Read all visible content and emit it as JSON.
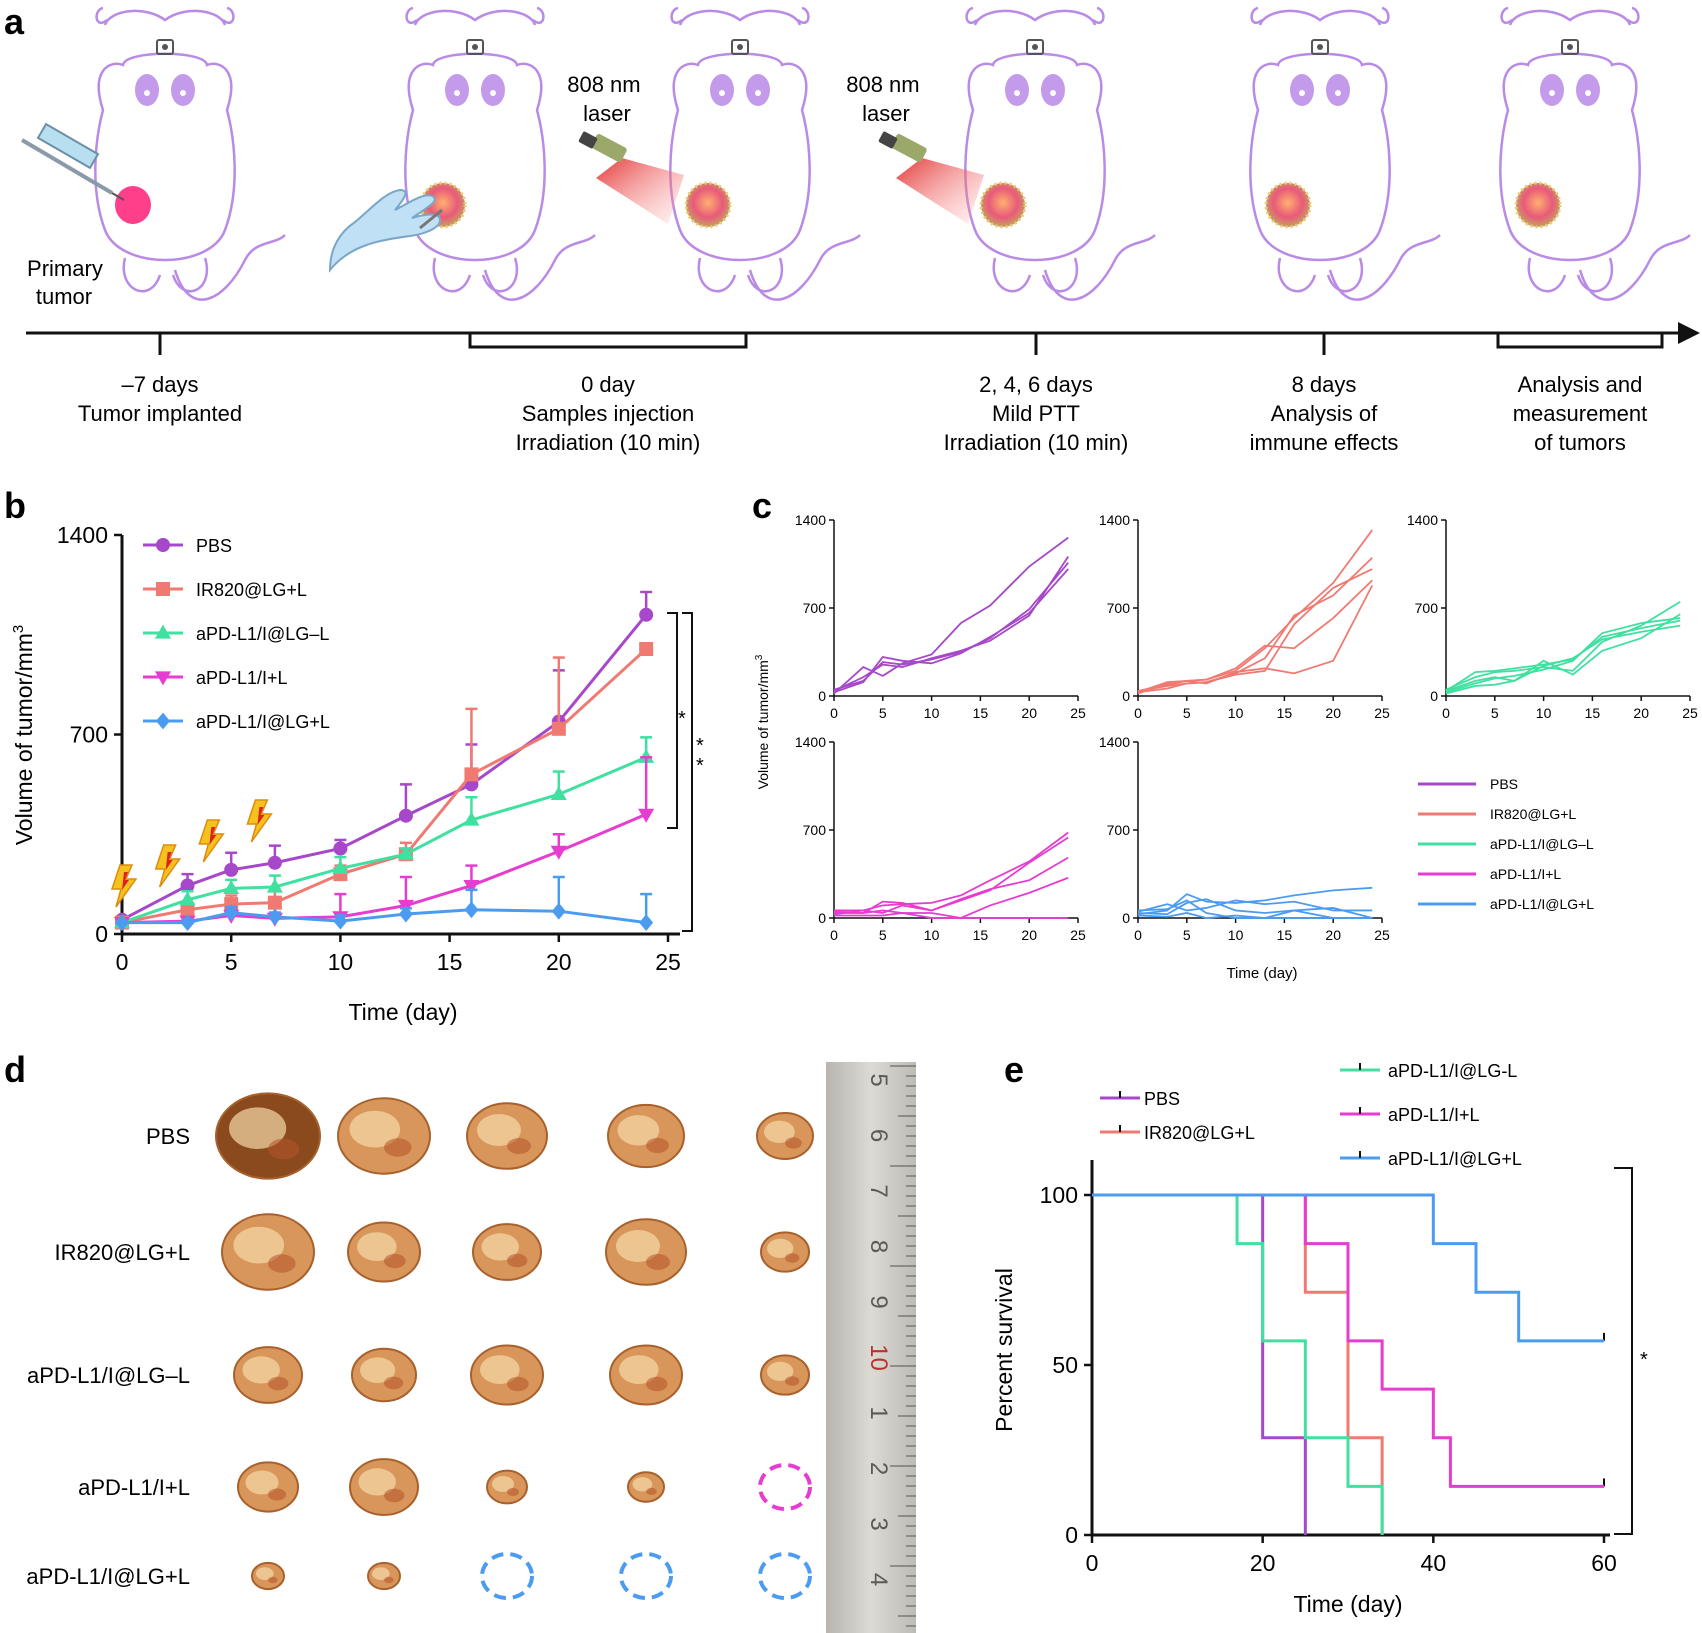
{
  "colors": {
    "pbs": "#a648c9",
    "ir820": "#f07a72",
    "lg_minus": "#3fe0a0",
    "free_l": "#e63ccf",
    "lg_plus": "#4b9cf0",
    "mouse": "#b98ae6",
    "tumor": "#ff3f8a",
    "laser": "#e02020",
    "bolt": "#f3c21c"
  },
  "panel_a": {
    "letter": "a",
    "injection_label": [
      "Primary",
      "tumor"
    ],
    "laser_label_1": [
      "808 nm",
      "laser"
    ],
    "laser_label_2": [
      "808 nm",
      "laser"
    ],
    "timeline": [
      {
        "lines": [
          "–7 days",
          "Tumor implanted"
        ]
      },
      {
        "lines": [
          "0 day",
          "Samples injection",
          "Irradiation (10 min)"
        ]
      },
      {
        "lines": [
          "2, 4, 6 days",
          "Mild PTT",
          "Irradiation (10 min)"
        ]
      },
      {
        "lines": [
          "8 days",
          "Analysis of",
          "immune effects"
        ]
      },
      {
        "lines": [
          "Analysis and",
          "measurement",
          "of tumors"
        ]
      }
    ]
  },
  "panel_b": {
    "letter": "b",
    "sig_1": "*",
    "sig_2": "*\n*",
    "chart_data": {
      "type": "line",
      "title": "",
      "xlabel": "Time (day)",
      "ylabel": "Volume of tumor/mm3",
      "xlim": [
        0,
        25
      ],
      "ylim": [
        0,
        1400
      ],
      "xticks": [
        0,
        5,
        10,
        15,
        20,
        25
      ],
      "yticks": [
        0,
        700,
        1400
      ],
      "laser_days": [
        0,
        2,
        4,
        6.2
      ],
      "series": [
        {
          "name": "PBS",
          "key": "pbs",
          "marker": "circle",
          "x": [
            0,
            3,
            5,
            7,
            10,
            13,
            16,
            20,
            24
          ],
          "y": [
            50,
            170,
            225,
            250,
            300,
            415,
            525,
            745,
            1120
          ],
          "err": [
            0,
            40,
            60,
            60,
            30,
            110,
            140,
            180,
            80
          ]
        },
        {
          "name": "IR820@LG+L",
          "key": "ir820",
          "marker": "square",
          "x": [
            0,
            3,
            5,
            7,
            10,
            13,
            16,
            20,
            24
          ],
          "y": [
            40,
            85,
            105,
            110,
            210,
            280,
            560,
            720,
            1000
          ],
          "err": [
            0,
            20,
            30,
            40,
            30,
            40,
            230,
            250,
            0
          ]
        },
        {
          "name": "aPD-L1/I@LG–L",
          "key": "lg_minus",
          "marker": "triangle-up",
          "x": [
            0,
            3,
            5,
            7,
            10,
            13,
            16,
            20,
            24
          ],
          "y": [
            40,
            120,
            160,
            165,
            230,
            280,
            400,
            490,
            620
          ],
          "err": [
            0,
            30,
            30,
            40,
            40,
            20,
            80,
            80,
            70
          ]
        },
        {
          "name": "aPD-L1/I+L",
          "key": "free_l",
          "marker": "triangle-down",
          "x": [
            0,
            3,
            5,
            7,
            10,
            13,
            16,
            20,
            24
          ],
          "y": [
            40,
            45,
            65,
            55,
            60,
            100,
            170,
            290,
            420
          ],
          "err": [
            0,
            10,
            20,
            20,
            80,
            100,
            70,
            60,
            200
          ]
        },
        {
          "name": "aPD-L1/I@LG+L",
          "key": "lg_plus",
          "marker": "diamond",
          "x": [
            0,
            3,
            5,
            7,
            10,
            13,
            16,
            20,
            24
          ],
          "y": [
            40,
            40,
            75,
            60,
            45,
            70,
            85,
            80,
            40
          ],
          "err": [
            0,
            10,
            20,
            15,
            20,
            20,
            70,
            120,
            100
          ]
        }
      ]
    }
  },
  "panel_c": {
    "letter": "c",
    "ylabel": "Volume of tumor/mm3",
    "xlabel": "Time (day)",
    "chart_data": {
      "type": "line",
      "xlim": [
        0,
        25
      ],
      "ylim": [
        0,
        1400
      ],
      "xticks": [
        0,
        5,
        10,
        15,
        20,
        25
      ],
      "yticks": [
        0,
        700,
        1400
      ],
      "x": [
        0,
        3,
        5,
        7,
        10,
        13,
        16,
        20,
        24
      ],
      "panels": [
        {
          "group": "PBS",
          "key": "pbs",
          "lines": [
            [
              20,
              230,
              160,
              260,
              330,
              580,
              720,
              1030,
              1260
            ],
            [
              40,
              150,
              250,
              230,
              300,
              360,
              440,
              640,
              1110
            ],
            [
              50,
              120,
              270,
              250,
              290,
              350,
              460,
              690,
              1060
            ],
            [
              30,
              110,
              310,
              280,
              260,
              340,
              470,
              660,
              1010
            ]
          ]
        },
        {
          "group": "IR820@LG+L",
          "key": "ir820",
          "lines": [
            [
              30,
              110,
              120,
              130,
              200,
              380,
              620,
              900,
              1320
            ],
            [
              40,
              80,
              100,
              110,
              180,
              300,
              640,
              800,
              1100
            ],
            [
              30,
              60,
              100,
              110,
              170,
              200,
              570,
              860,
              1010
            ],
            [
              40,
              90,
              120,
              130,
              220,
              400,
              380,
              620,
              920
            ],
            [
              20,
              100,
              120,
              100,
              190,
              220,
              180,
              280,
              880
            ]
          ]
        },
        {
          "group": "aPD-L1/I@LG–L",
          "key": "lg_minus",
          "lines": [
            [
              50,
              150,
              190,
              200,
              230,
              200,
              430,
              560,
              750
            ],
            [
              40,
              120,
              150,
              120,
              280,
              170,
              360,
              460,
              650
            ],
            [
              30,
              100,
              140,
              160,
              210,
              280,
              500,
              580,
              620
            ],
            [
              40,
              190,
              200,
              220,
              250,
              290,
              470,
              540,
              600
            ],
            [
              20,
              80,
              90,
              120,
              240,
              300,
              450,
              510,
              560
            ]
          ]
        },
        {
          "group": "aPD-L1/I+L",
          "key": "free_l",
          "lines": [
            [
              60,
              60,
              100,
              110,
              120,
              180,
              300,
              450,
              680
            ],
            [
              50,
              40,
              130,
              120,
              60,
              140,
              220,
              440,
              640
            ],
            [
              30,
              60,
              40,
              100,
              60,
              150,
              230,
              300,
              480
            ],
            [
              20,
              20,
              20,
              40,
              0,
              0,
              100,
              200,
              320
            ],
            [
              40,
              40,
              60,
              40,
              40,
              0,
              0,
              0,
              0
            ]
          ]
        },
        {
          "group": "aPD-L1/I@LG+L",
          "key": "lg_plus",
          "lines": [
            [
              30,
              60,
              190,
              130,
              120,
              140,
              180,
              220,
              240
            ],
            [
              50,
              110,
              60,
              80,
              140,
              110,
              130,
              60,
              60
            ],
            [
              40,
              30,
              120,
              150,
              60,
              40,
              60,
              80,
              0
            ],
            [
              20,
              10,
              40,
              0,
              20,
              0,
              60,
              0,
              0
            ],
            [
              60,
              70,
              140,
              40,
              0,
              0,
              0,
              0,
              0
            ]
          ]
        }
      ]
    },
    "legend": [
      "PBS",
      "IR820@LG+L",
      "aPD-L1/I@LG–L",
      "aPD-L1/I+L",
      "aPD-L1/I@LG+L"
    ]
  },
  "panel_d": {
    "letter": "d",
    "rows": [
      "PBS",
      "IR820@LG+L",
      "aPD-L1/I@LG–L",
      "aPD-L1/I+L",
      "aPD-L1/I@LG+L"
    ],
    "ruler_numbers": [
      "5",
      "6",
      "7",
      "8",
      "9",
      "10",
      "1",
      "2",
      "3",
      "4"
    ],
    "tumor_presence": [
      [
        1,
        1,
        1,
        1,
        1
      ],
      [
        1,
        1,
        1,
        1,
        1
      ],
      [
        1,
        1,
        1,
        1,
        1
      ],
      [
        1,
        1,
        1,
        1,
        0
      ],
      [
        1,
        1,
        0,
        0,
        0
      ]
    ]
  },
  "panel_e": {
    "letter": "e",
    "sig": "*",
    "legend_left": [
      "PBS",
      "IR820@LG+L"
    ],
    "legend_right": [
      "aPD-L1/I@LG-L",
      "aPD-L1/I+L",
      "aPD-L1/I@LG+L"
    ],
    "chart_data": {
      "type": "line",
      "subtype": "kaplan-meier",
      "xlabel": "Time (day)",
      "ylabel": "Percent survival",
      "xlim": [
        0,
        60
      ],
      "ylim": [
        0,
        100
      ],
      "xticks": [
        0,
        20,
        40,
        60
      ],
      "yticks": [
        0,
        50,
        100
      ],
      "series": [
        {
          "name": "PBS",
          "key": "pbs",
          "steps": [
            [
              0,
              100
            ],
            [
              20,
              28.6
            ],
            [
              25,
              0
            ]
          ]
        },
        {
          "name": "IR820@LG+L",
          "key": "ir820",
          "steps": [
            [
              0,
              100
            ],
            [
              25,
              71.4
            ],
            [
              30,
              28.6
            ],
            [
              34,
              0
            ]
          ]
        },
        {
          "name": "aPD-L1/I@LG-L",
          "key": "lg_minus",
          "steps": [
            [
              0,
              100
            ],
            [
              17,
              85.7
            ],
            [
              20,
              57.1
            ],
            [
              25,
              28.6
            ],
            [
              30,
              14.3
            ],
            [
              34,
              0
            ]
          ]
        },
        {
          "name": "aPD-L1/I+L",
          "key": "free_l",
          "steps": [
            [
              0,
              100
            ],
            [
              25,
              85.7
            ],
            [
              30,
              57.1
            ],
            [
              34,
              42.9
            ],
            [
              40,
              28.6
            ],
            [
              42,
              14.3
            ],
            [
              60,
              14.3
            ]
          ]
        },
        {
          "name": "aPD-L1/I@LG+L",
          "key": "lg_plus",
          "steps": [
            [
              0,
              100
            ],
            [
              40,
              85.7
            ],
            [
              45,
              71.4
            ],
            [
              50,
              57.1
            ],
            [
              60,
              57.1
            ]
          ]
        }
      ]
    }
  }
}
